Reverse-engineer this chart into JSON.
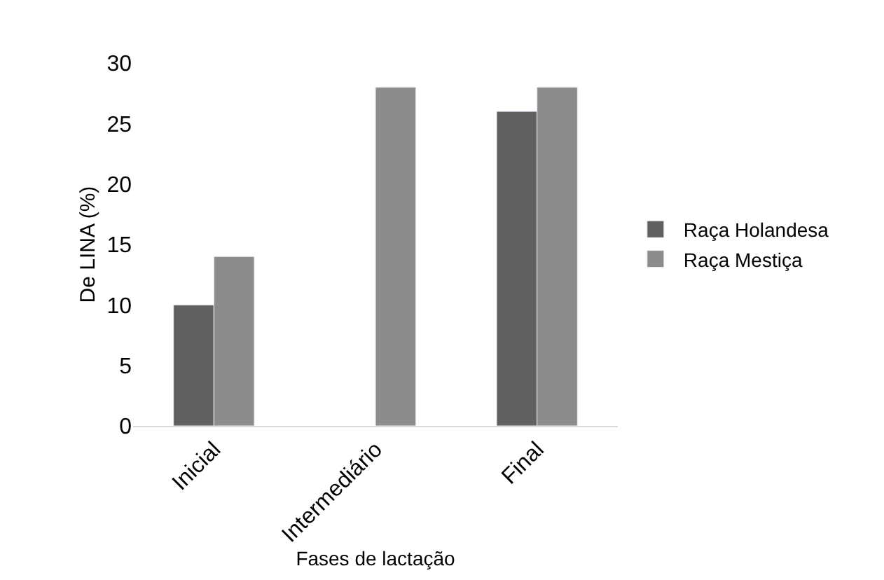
{
  "chart_data": {
    "type": "bar",
    "categories": [
      "Inicial",
      "Intermediário",
      "Final"
    ],
    "series": [
      {
        "name": "Raça Holandesa",
        "color": "#606060",
        "values": [
          10,
          null,
          26
        ]
      },
      {
        "name": "Raça Mestiça",
        "color": "#8c8c8c",
        "values": [
          14,
          28,
          28
        ]
      }
    ],
    "xlabel": "Fases de lactação",
    "ylabel": "De LINA (%)",
    "ylim": [
      0,
      30
    ],
    "yticks": [
      0,
      5,
      10,
      15,
      20,
      25,
      30
    ],
    "legend": "right"
  }
}
